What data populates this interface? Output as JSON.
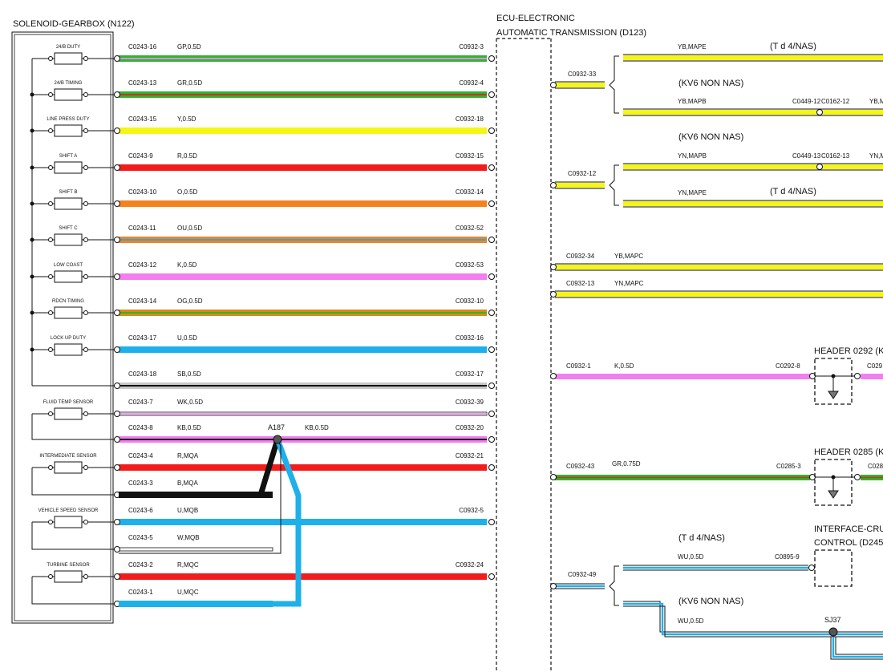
{
  "gearbox": {
    "title": "SOLENOID-GEARBOX (N122)",
    "components": [
      "24/B DUTY",
      "24/B TIMING",
      "LINE PRESS DUTY",
      "SHIFT A",
      "SHIFT B",
      "SHIFT C",
      "LOW COAST",
      "RDCN TIMING",
      "LOCK UP DUTY",
      "FLUID TEMP SENSOR",
      "INTERMEDIATE SENSOR",
      "VEHICLE SPEED SENSOR",
      "TURBINE SENSOR"
    ]
  },
  "ecu": {
    "title_line1": "ECU-ELECTRONIC",
    "title_line2": "AUTOMATIC TRANSMISSION (D123)"
  },
  "wires": [
    {
      "from": "C0243-16",
      "code": "GP,0.5D",
      "to": "C0932-3",
      "main": "#2db52d",
      "stripe": "#e28be0"
    },
    {
      "from": "C0243-13",
      "code": "GR,0.5D",
      "to": "C0932-4",
      "main": "#2db52d",
      "stripe": "#d42a2a"
    },
    {
      "from": "C0243-15",
      "code": "Y,0.5D",
      "to": "C0932-18",
      "main": "#f5f516",
      "stripe": ""
    },
    {
      "from": "C0243-9",
      "code": "R,0.5D",
      "to": "C0932-15",
      "main": "#f21c1c",
      "stripe": ""
    },
    {
      "from": "C0243-10",
      "code": "O,0.5D",
      "to": "C0932-14",
      "main": "#f5821f",
      "stripe": ""
    },
    {
      "from": "C0243-11",
      "code": "OU,0.5D",
      "to": "C0932-52",
      "main": "#f5821f",
      "stripe": "#29a8e0"
    },
    {
      "from": "C0243-12",
      "code": "K,0.5D",
      "to": "C0932-53",
      "main": "#f27ef0",
      "stripe": ""
    },
    {
      "from": "C0243-14",
      "code": "OG,0.5D",
      "to": "C0932-10",
      "main": "#d98a1a",
      "stripe": "#2db52d"
    },
    {
      "from": "C0243-17",
      "code": "U,0.5D",
      "to": "C0932-16",
      "main": "#1eb0ea",
      "stripe": ""
    },
    {
      "from": "C0243-18",
      "code": "SB,0.5D",
      "to": "C0932-17",
      "main": "#c8c8c8",
      "stripe": "#111111"
    },
    {
      "from": "C0243-7",
      "code": "WK,0.5D",
      "to": "C0932-39",
      "main": "#ffffff",
      "stripe": "#f27ef0"
    },
    {
      "from": "C0243-8",
      "code": "KB,0.5D",
      "to": "C0932-20",
      "main": "#f27ef0",
      "stripe": "#111111",
      "splice": "A187",
      "code2": "KB,0.5D"
    },
    {
      "from": "C0243-4",
      "code": "R,MQA",
      "to": "C0932-21",
      "main": "#f21c1c",
      "stripe": ""
    },
    {
      "from": "C0243-3",
      "code": "B,MQA",
      "to": "",
      "main": "#111111",
      "stripe": ""
    },
    {
      "from": "C0243-6",
      "code": "U,MQB",
      "to": "C0932-5",
      "main": "#1eb0ea",
      "stripe": ""
    },
    {
      "from": "C0243-5",
      "code": "W,MQB",
      "to": "",
      "main": "#ffffff",
      "stripe": ""
    },
    {
      "from": "C0243-2",
      "code": "R,MQC",
      "to": "C0932-24",
      "main": "#f21c1c",
      "stripe": ""
    },
    {
      "from": "C0243-1",
      "code": "U,MQC",
      "to": "",
      "main": "#1eb0ea",
      "stripe": ""
    }
  ],
  "right": {
    "pin33": "C0932-33",
    "pin12": "C0932-12",
    "ymape": "YB,MAPE",
    "td4nas": "(T d 4/NAS)",
    "kv6nonnas": "(KV6 NON NAS)",
    "ymapb": "YB,MAPB",
    "c0449_12": "C0449-12",
    "c0162_12": "C0162-12",
    "ybm": "YB,M",
    "ynmapb": "YN,MAPB",
    "c0449_13": "C0449-13",
    "c0162_13": "C0162-13",
    "ynm": "YN,M",
    "ynmape": "YN,MAPE",
    "pin34": "C0932-34",
    "ybmapc": "YB,MAPC",
    "pin13": "C0932-13",
    "ynmapc": "YN,MAPC",
    "pin1": "C0932-1",
    "k05": "K,0.5D",
    "c0292_8": "C0292-8",
    "header292": "HEADER 0292 (K",
    "c029": "C029",
    "pin43": "C0932-43",
    "gr075": "GR,0.75D",
    "c0285_3": "C0285-3",
    "header285": "HEADER 0285 (K",
    "c028": "C028",
    "interface1": "INTERFACE-CRU",
    "interface2": "CONTROL (D245)",
    "pin49": "C0932-49",
    "wu05a": "WU,0.5D",
    "c0895_9": "C0895-9",
    "wu05b": "WU,0.5D",
    "sj37": "SJ37"
  }
}
